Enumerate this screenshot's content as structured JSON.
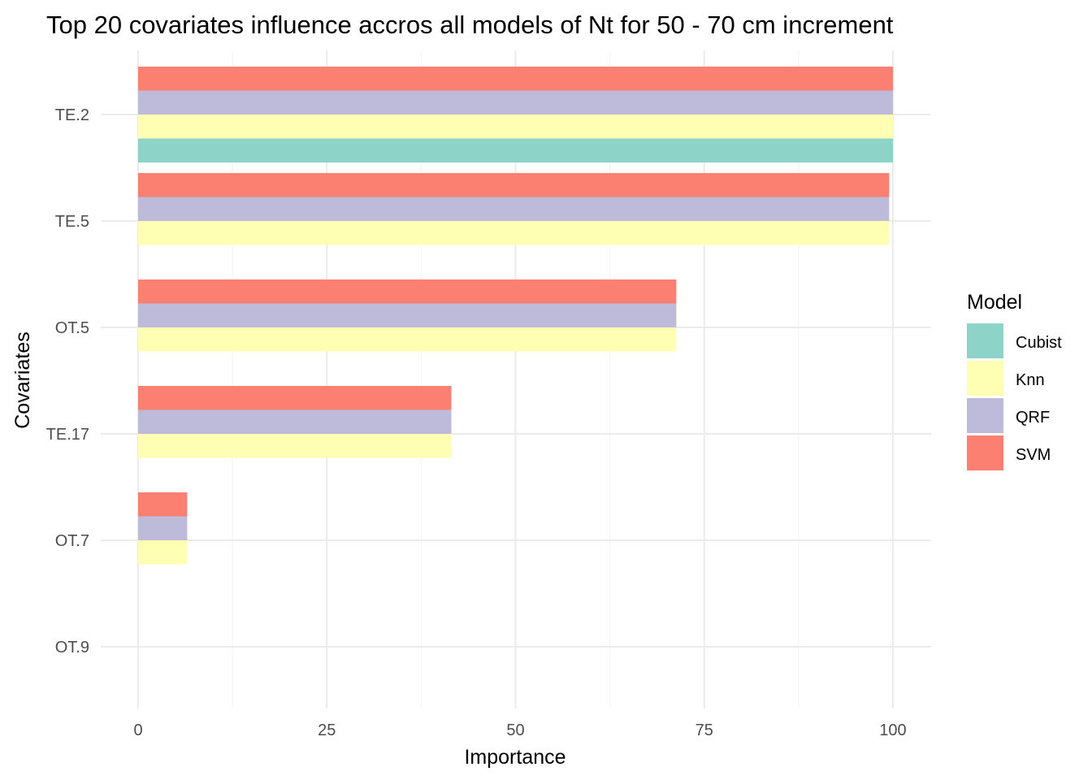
{
  "chart_data": {
    "type": "bar",
    "orientation": "horizontal",
    "title": "Top 20 covariates influence accros all models of Nt for 50 - 70 cm increment",
    "xlabel": "Importance",
    "ylabel": "Covariates",
    "xlim": [
      0,
      100
    ],
    "x_ticks": [
      "0",
      "25",
      "50",
      "75",
      "100"
    ],
    "grid": true,
    "categories": [
      "TE.2",
      "TE.5",
      "OT.5",
      "TE.17",
      "OT.7",
      "OT.9"
    ],
    "legend": {
      "title": "Model",
      "position": "right"
    },
    "series": [
      {
        "name": "Cubist",
        "color": "#8DD3C7",
        "values": [
          100,
          null,
          null,
          null,
          null,
          null
        ]
      },
      {
        "name": "Knn",
        "color": "#FFFFB3",
        "values": [
          100,
          99.5,
          71.3,
          41.5,
          6.5,
          0
        ]
      },
      {
        "name": "QRF",
        "color": "#BEBADA",
        "values": [
          100,
          99.5,
          71.3,
          41.5,
          6.5,
          0
        ]
      },
      {
        "name": "SVM",
        "color": "#FB8072",
        "values": [
          100,
          99.5,
          71.3,
          41.5,
          6.5,
          0
        ]
      }
    ]
  }
}
